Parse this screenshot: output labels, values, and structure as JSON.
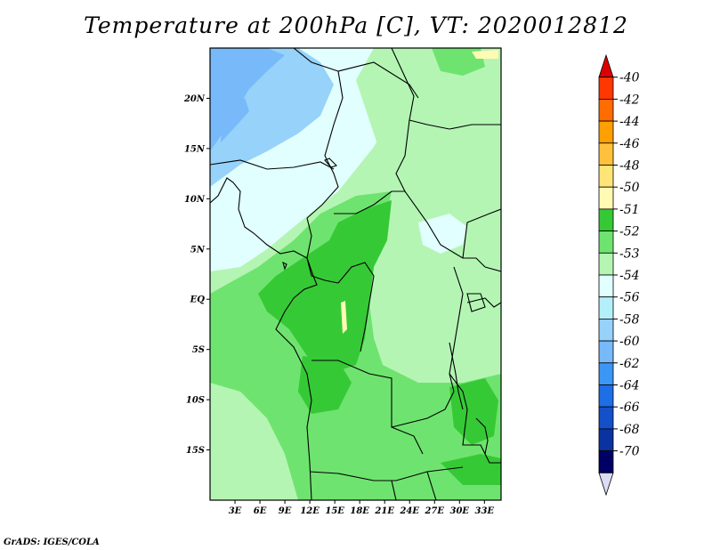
{
  "title": "Temperature at 200hPa [C], VT: 2020012812",
  "credit": "GrADS: IGES/COLA",
  "map": {
    "lon_range": [
      0,
      35
    ],
    "lat_range": [
      -20,
      25
    ],
    "lat_ticks": [
      {
        "value": 20,
        "label": "20N"
      },
      {
        "value": 15,
        "label": "15N"
      },
      {
        "value": 10,
        "label": "10N"
      },
      {
        "value": 5,
        "label": "5N"
      },
      {
        "value": 0,
        "label": "EQ"
      },
      {
        "value": -5,
        "label": "5S"
      },
      {
        "value": -10,
        "label": "10S"
      },
      {
        "value": -15,
        "label": "15S"
      }
    ],
    "lon_ticks": [
      {
        "value": 3,
        "label": "3E"
      },
      {
        "value": 6,
        "label": "6E"
      },
      {
        "value": 9,
        "label": "9E"
      },
      {
        "value": 12,
        "label": "12E"
      },
      {
        "value": 15,
        "label": "15E"
      },
      {
        "value": 18,
        "label": "18E"
      },
      {
        "value": 21,
        "label": "21E"
      },
      {
        "value": 24,
        "label": "24E"
      },
      {
        "value": 27,
        "label": "27E"
      },
      {
        "value": 30,
        "label": "30E"
      },
      {
        "value": 33,
        "label": "33E"
      }
    ]
  },
  "colorbar": [
    {
      "label": "-40",
      "color": "#dc0000"
    },
    {
      "label": "-42",
      "color": "#ff3700"
    },
    {
      "label": "-44",
      "color": "#ff6c00"
    },
    {
      "label": "-46",
      "color": "#ffa000"
    },
    {
      "label": "-48",
      "color": "#ffc13c"
    },
    {
      "label": "-50",
      "color": "#ffe478"
    },
    {
      "label": "-51",
      "color": "#fffab4"
    },
    {
      "label": "-52",
      "color": "#36c936"
    },
    {
      "label": "-53",
      "color": "#6fe36f"
    },
    {
      "label": "-54",
      "color": "#b4f5b4"
    },
    {
      "label": "-56",
      "color": "#e1ffff"
    },
    {
      "label": "-58",
      "color": "#b4f0fa"
    },
    {
      "label": "-60",
      "color": "#96d2fa"
    },
    {
      "label": "-62",
      "color": "#78b9fa"
    },
    {
      "label": "-64",
      "color": "#3c96f5"
    },
    {
      "label": "-66",
      "color": "#1e6ee6"
    },
    {
      "label": "-68",
      "color": "#1450c8"
    },
    {
      "label": "-70",
      "color": "#0a32a0"
    },
    {
      "label": "",
      "color": "#000064"
    }
  ],
  "colorbar_under": "#dcdcf5"
}
